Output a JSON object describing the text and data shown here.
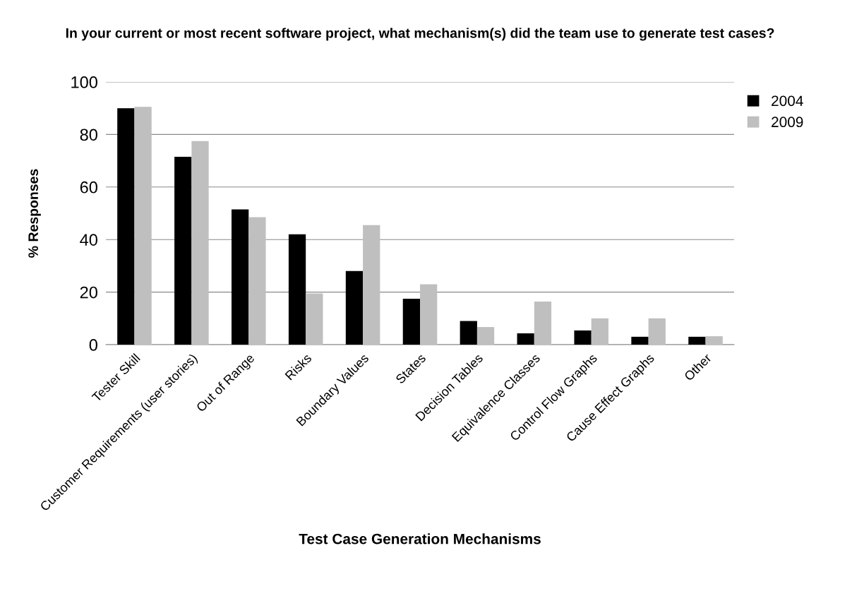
{
  "chart_data": {
    "type": "bar",
    "title": "In your current or most recent software project, what mechanism(s) did the team use to generate test cases?",
    "xlabel": "Test Case Generation Mechanisms",
    "ylabel": "% Responses",
    "categories": [
      "Tester Skill",
      "Customer Requirements (user stories)",
      "Out of Range",
      "Risks",
      "Boundary Values",
      "States",
      "Decision Tables",
      "Equivalence Classes",
      "Control Flow Graphs",
      "Cause Effect Graphs",
      "Other"
    ],
    "series": [
      {
        "name": "2004",
        "color": "#000000",
        "values": [
          90,
          71.5,
          51.5,
          42,
          28,
          17.5,
          9,
          4.3,
          5.4,
          3,
          3
        ]
      },
      {
        "name": "2009",
        "color": "#bfbfbf",
        "values": [
          90.5,
          77.5,
          48.5,
          19.5,
          45.5,
          23,
          6.7,
          16.4,
          10,
          10,
          3.2
        ]
      }
    ],
    "ylim": [
      0,
      100
    ],
    "yticks": [
      0,
      20,
      40,
      60,
      80,
      100
    ],
    "grid": "y",
    "legend": "top right"
  }
}
